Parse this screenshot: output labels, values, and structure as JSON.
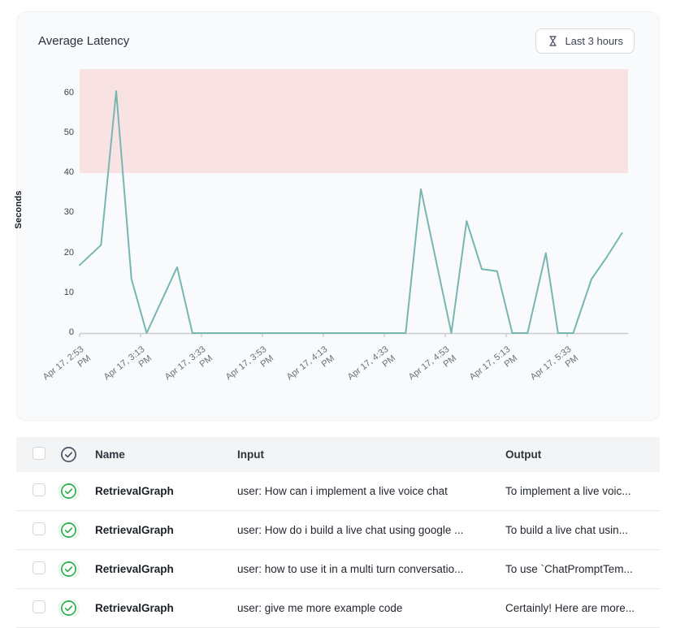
{
  "header": {
    "title": "Average Latency",
    "time_range_button": {
      "label": "Last 3 hours",
      "icon": "hourglass-icon"
    }
  },
  "chart_data": {
    "type": "line",
    "title": "Average Latency",
    "ylabel": "Seconds",
    "ylim": [
      0,
      66
    ],
    "y_ticks": [
      0,
      10,
      20,
      30,
      40,
      50,
      60
    ],
    "xlim_minutes": [
      0,
      180
    ],
    "x_ticks": [
      {
        "label": "Apr 17, 2:53 PM",
        "minutes": 0
      },
      {
        "label": "Apr 17, 3:13 PM",
        "minutes": 20
      },
      {
        "label": "Apr 17, 3:33 PM",
        "minutes": 40
      },
      {
        "label": "Apr 17, 3:53 PM",
        "minutes": 60
      },
      {
        "label": "Apr 17, 4:13 PM",
        "minutes": 80
      },
      {
        "label": "Apr 17, 4:33 PM",
        "minutes": 100
      },
      {
        "label": "Apr 17, 4:53 PM",
        "minutes": 120
      },
      {
        "label": "Apr 17, 5:13 PM",
        "minutes": 140
      },
      {
        "label": "Apr 17, 5:33 PM",
        "minutes": 160
      }
    ],
    "grid": false,
    "legend": false,
    "line_color": "#76b7b2",
    "axis_color": "#c9ccd2",
    "tick_color": "#b6bac0",
    "threshold_band": {
      "from_seconds": 40,
      "to_seconds": 66,
      "color": "#f8e2e2"
    },
    "series": [
      {
        "name": "Average Latency (seconds)",
        "points": [
          {
            "m": 0,
            "v": 17
          },
          {
            "m": 7,
            "v": 22
          },
          {
            "m": 12,
            "v": 60.5
          },
          {
            "m": 17,
            "v": 13.5
          },
          {
            "m": 22,
            "v": 0
          },
          {
            "m": 32,
            "v": 16.5
          },
          {
            "m": 37,
            "v": 0
          },
          {
            "m": 107,
            "v": 0
          },
          {
            "m": 112,
            "v": 36
          },
          {
            "m": 122,
            "v": 0
          },
          {
            "m": 127,
            "v": 28
          },
          {
            "m": 132,
            "v": 16
          },
          {
            "m": 137,
            "v": 15.5
          },
          {
            "m": 142,
            "v": 0
          },
          {
            "m": 147,
            "v": 0
          },
          {
            "m": 153,
            "v": 20
          },
          {
            "m": 157,
            "v": 0
          },
          {
            "m": 162,
            "v": 0
          },
          {
            "m": 168,
            "v": 13.5
          },
          {
            "m": 173,
            "v": 19
          },
          {
            "m": 178,
            "v": 25
          }
        ]
      }
    ]
  },
  "table": {
    "columns": {
      "name": "Name",
      "input": "Input",
      "output": "Output"
    },
    "rows": [
      {
        "status": "success",
        "name": "RetrievalGraph",
        "input": "user: How can i implement a live voice chat",
        "output": "To implement a live voic..."
      },
      {
        "status": "success",
        "name": "RetrievalGraph",
        "input": "user: How do i build a live chat using google ...",
        "output": "To build a live chat usin..."
      },
      {
        "status": "success",
        "name": "RetrievalGraph",
        "input": "user: how to use it in a multi turn conversatio...",
        "output": "To use `ChatPromptTem..."
      },
      {
        "status": "success",
        "name": "RetrievalGraph",
        "input": "user: give me more example code",
        "output": "Certainly! Here are more..."
      }
    ]
  },
  "colors": {
    "accent_teal": "#76b7b2",
    "threshold_pink": "#f8e2e2",
    "success_green": "#2ab04a",
    "card_bg": "#f9fafb",
    "table_header_bg": "#f3f4f6"
  }
}
